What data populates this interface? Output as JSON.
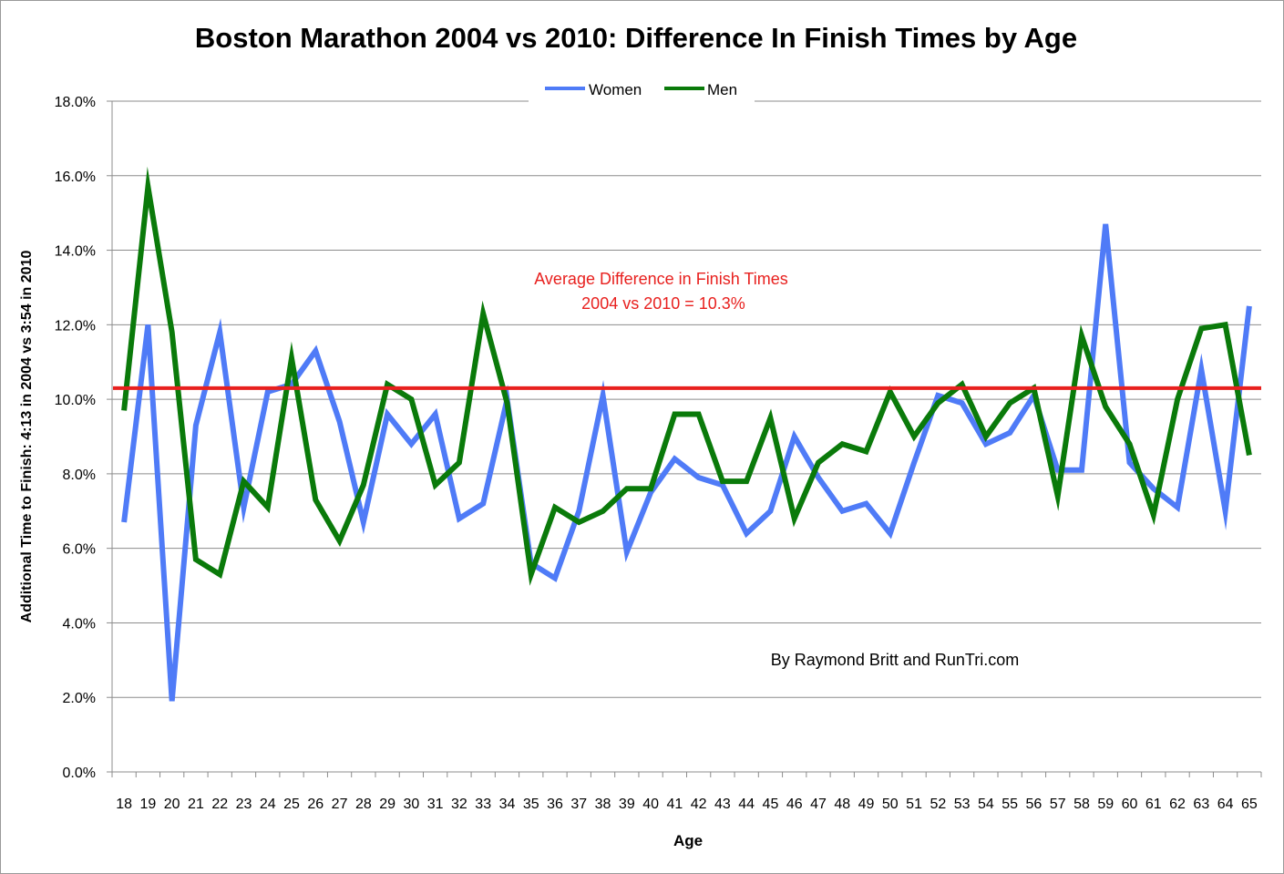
{
  "chart_data": {
    "type": "line",
    "title": "Boston Marathon 2004 vs 2010: Difference In Finish Times by Age",
    "xlabel": "Age",
    "ylabel": "Additional Time  to Finish: 4:13 in 2004 vs 3:54 in 2010",
    "ylim": [
      0,
      18
    ],
    "y_tick_step": 2,
    "y_tick_labels": [
      "0.0%",
      "2.0%",
      "4.0%",
      "6.0%",
      "8.0%",
      "10.0%",
      "12.0%",
      "14.0%",
      "16.0%",
      "18.0%"
    ],
    "grid": "horizontal",
    "legend_position": "top",
    "categories": [
      "18",
      "19",
      "20",
      "21",
      "22",
      "23",
      "24",
      "25",
      "26",
      "27",
      "28",
      "29",
      "30",
      "31",
      "32",
      "33",
      "34",
      "35",
      "36",
      "37",
      "38",
      "39",
      "40",
      "41",
      "42",
      "43",
      "44",
      "45",
      "46",
      "47",
      "48",
      "49",
      "50",
      "51",
      "52",
      "53",
      "54",
      "55",
      "56",
      "57",
      "58",
      "59",
      "60",
      "61",
      "62",
      "63",
      "64",
      "65"
    ],
    "series": [
      {
        "name": "Women",
        "color": "#4F7BF7",
        "values": [
          6.7,
          12.0,
          1.9,
          9.3,
          11.8,
          7.1,
          10.2,
          10.4,
          11.3,
          9.4,
          6.7,
          9.6,
          8.8,
          9.6,
          6.8,
          7.2,
          10.0,
          5.6,
          5.2,
          7.0,
          10.1,
          5.9,
          7.5,
          8.4,
          7.9,
          7.7,
          6.4,
          7.0,
          9.0,
          7.9,
          7.0,
          7.2,
          6.4,
          8.3,
          10.1,
          9.9,
          8.8,
          9.1,
          10.1,
          8.1,
          8.1,
          14.7,
          8.3,
          7.6,
          7.1,
          10.8,
          7.0,
          12.5
        ]
      },
      {
        "name": "Men",
        "color": "#0A7A0A",
        "values": [
          9.7,
          15.7,
          11.8,
          5.7,
          5.3,
          7.8,
          7.1,
          11.1,
          7.3,
          6.2,
          7.7,
          10.4,
          10.0,
          7.7,
          8.3,
          12.3,
          9.9,
          5.3,
          7.1,
          6.7,
          7.0,
          7.6,
          7.6,
          9.6,
          9.6,
          7.8,
          7.8,
          9.5,
          6.8,
          8.3,
          8.8,
          8.6,
          10.2,
          9.0,
          9.9,
          10.4,
          9.0,
          9.9,
          10.3,
          7.4,
          11.7,
          9.8,
          8.8,
          6.9,
          10.0,
          11.9,
          12.0,
          8.5
        ]
      }
    ],
    "reference_line": {
      "value": 10.3,
      "color": "#E8201E"
    },
    "annotation_lines": [
      "Average Difference in Finish Times",
      "2004 vs 2010 = 10.3%"
    ],
    "credit": "By Raymond Britt and RunTri.com"
  }
}
